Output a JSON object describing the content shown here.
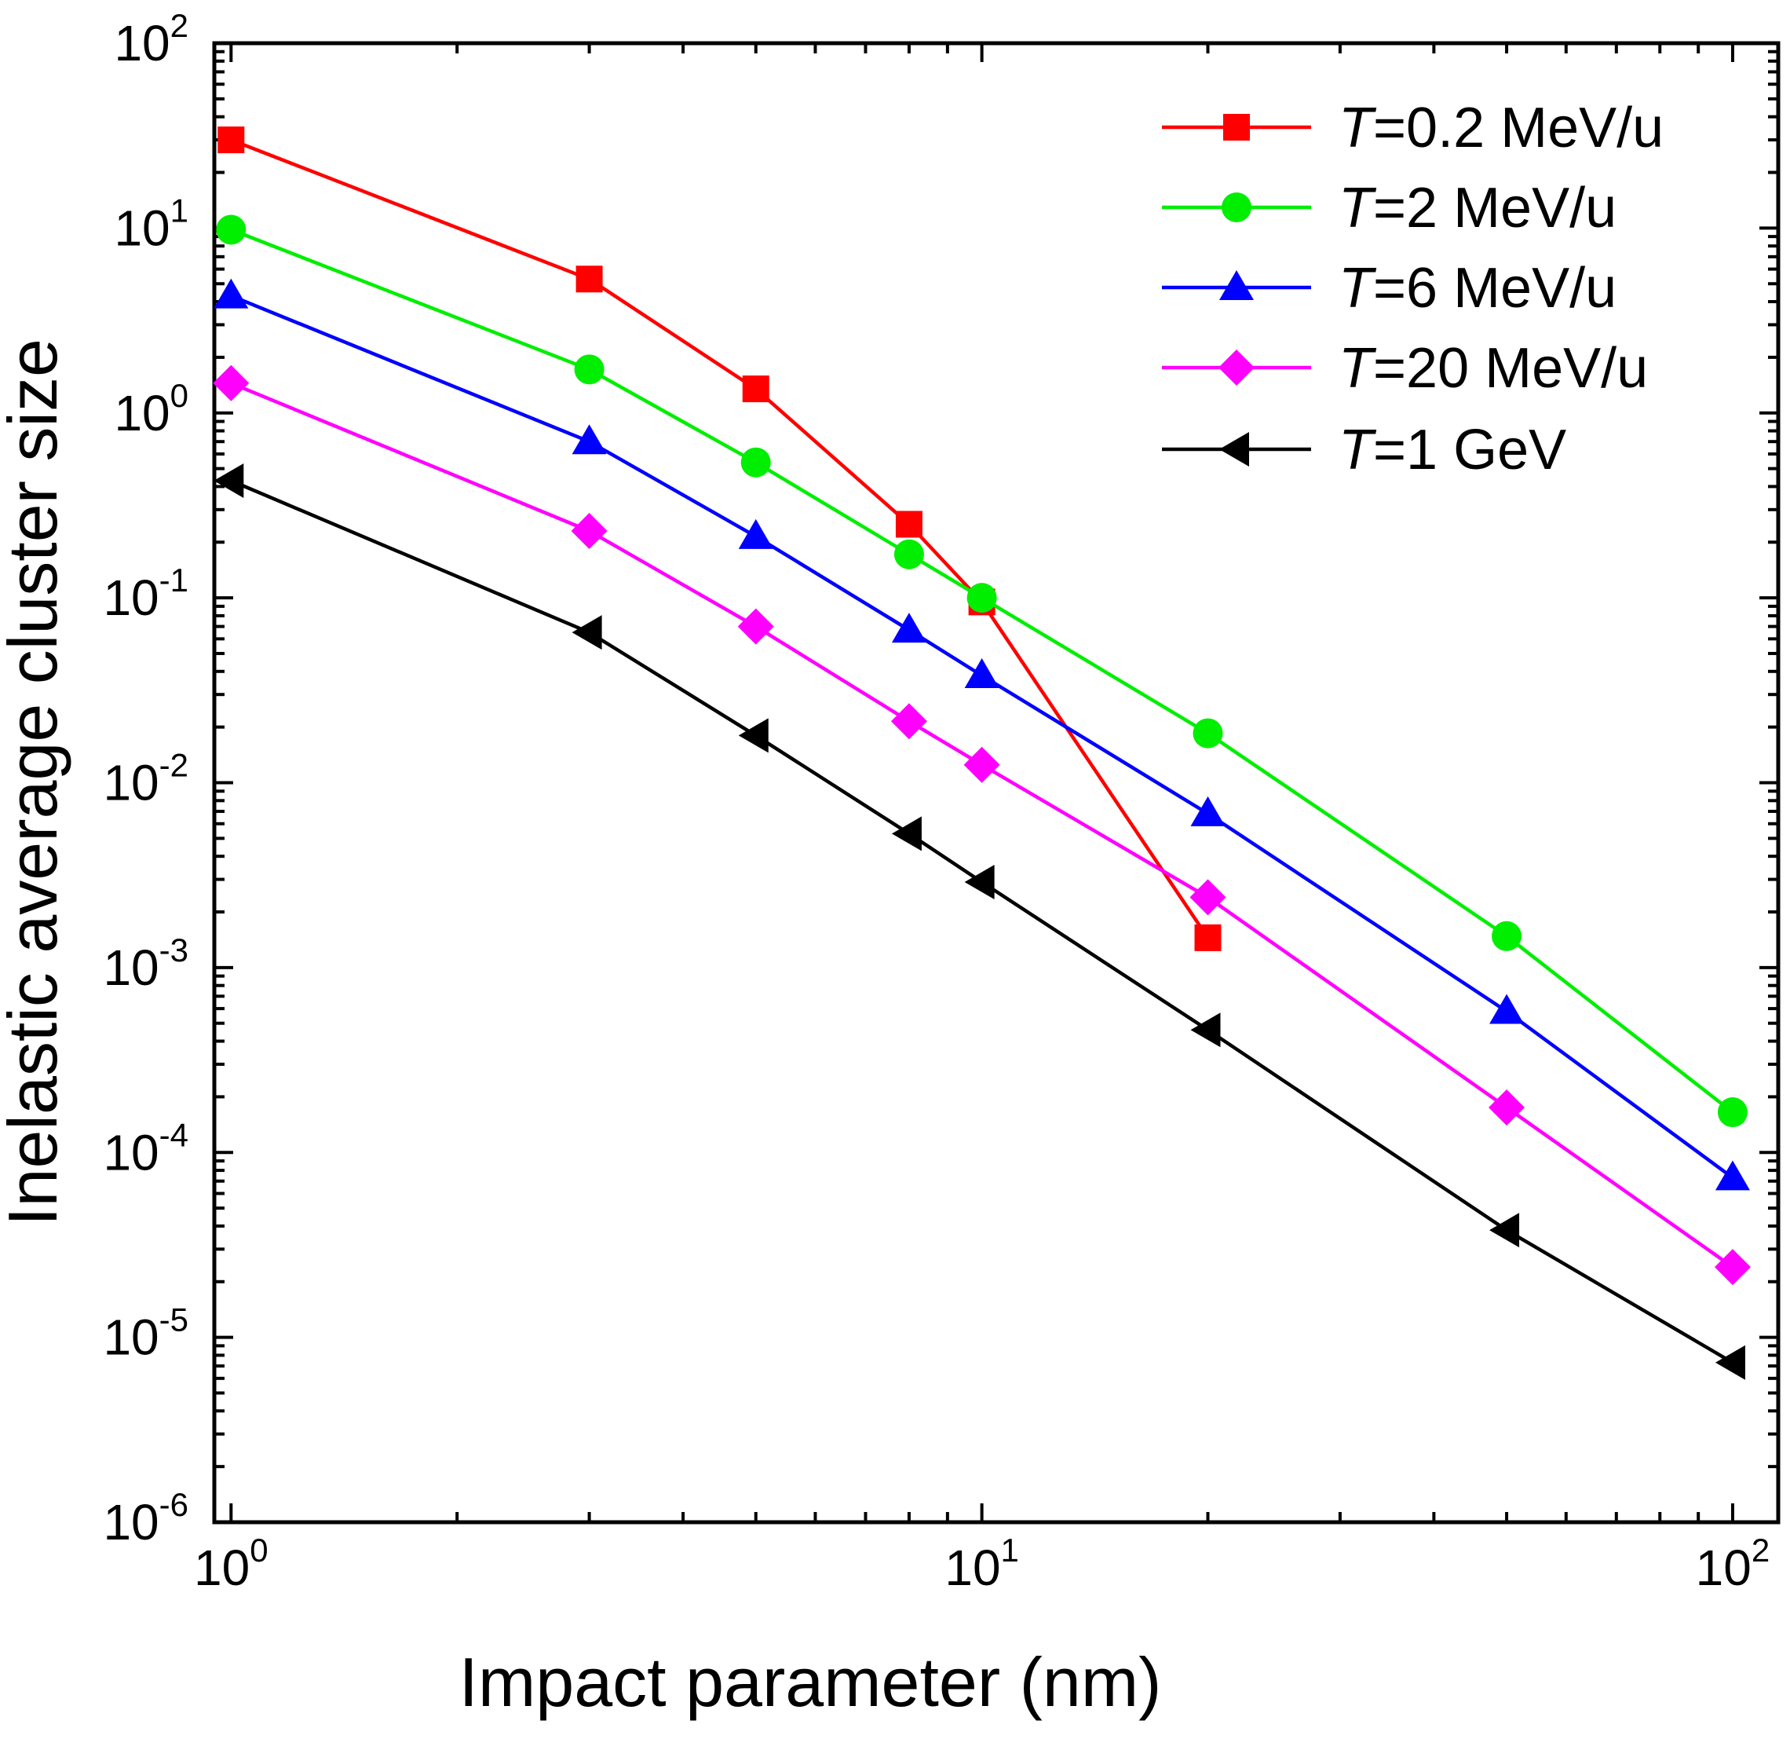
{
  "chart_data": {
    "type": "line",
    "title": "",
    "xlabel": "Impact parameter (nm)",
    "ylabel": "Inelastic average cluster size",
    "xscale": "log",
    "yscale": "log",
    "xlim": [
      0.95,
      115
    ],
    "ylim": [
      1e-06,
      100
    ],
    "grid": false,
    "legend_position": "top-right",
    "x_ticks": [
      {
        "value": 1,
        "base": "10",
        "exp": "0"
      },
      {
        "value": 10,
        "base": "10",
        "exp": "1"
      },
      {
        "value": 100,
        "base": "10",
        "exp": "2"
      }
    ],
    "y_ticks": [
      {
        "value": 1e-06,
        "base": "10",
        "exp": "-6"
      },
      {
        "value": 1e-05,
        "base": "10",
        "exp": "-5"
      },
      {
        "value": 0.0001,
        "base": "10",
        "exp": "-4"
      },
      {
        "value": 0.001,
        "base": "10",
        "exp": "-3"
      },
      {
        "value": 0.01,
        "base": "10",
        "exp": "-2"
      },
      {
        "value": 0.1,
        "base": "10",
        "exp": "-1"
      },
      {
        "value": 1,
        "base": "10",
        "exp": "0"
      },
      {
        "value": 10,
        "base": "10",
        "exp": "1"
      },
      {
        "value": 100,
        "base": "10",
        "exp": "2"
      }
    ],
    "series": [
      {
        "id": "t-0-2-mev",
        "name_italic": "T",
        "name_rest": "=0.2 MeV/u",
        "color": "#ff0000",
        "marker": "square",
        "x": [
          1,
          3,
          5,
          8,
          10,
          20
        ],
        "y": [
          30,
          5.3,
          1.35,
          0.25,
          0.095,
          0.00145
        ]
      },
      {
        "id": "t-2-mev",
        "name_italic": "T",
        "name_rest": "=2 MeV/u",
        "color": "#00ee00",
        "marker": "circle",
        "x": [
          1,
          3,
          5,
          8,
          10,
          20,
          50,
          100
        ],
        "y": [
          9.8,
          1.72,
          0.54,
          0.172,
          0.1,
          0.0185,
          0.00148,
          0.000165
        ]
      },
      {
        "id": "t-6-mev",
        "name_italic": "T",
        "name_rest": "=6 MeV/u",
        "color": "#0000ff",
        "marker": "triangle-up",
        "x": [
          1,
          3,
          5,
          8,
          10,
          20,
          50,
          100
        ],
        "y": [
          4.3,
          0.7,
          0.215,
          0.067,
          0.038,
          0.0068,
          0.00058,
          7.3e-05
        ]
      },
      {
        "id": "t-20-mev",
        "name_italic": "T",
        "name_rest": "=20 MeV/u",
        "color": "#ff00ff",
        "marker": "diamond",
        "x": [
          1,
          3,
          5,
          8,
          10,
          20,
          50,
          100
        ],
        "y": [
          1.45,
          0.23,
          0.07,
          0.0215,
          0.0125,
          0.0024,
          0.000175,
          2.4e-05
        ]
      },
      {
        "id": "t-1-gev",
        "name_italic": "T",
        "name_rest": "=1 GeV",
        "color": "#000000",
        "marker": "triangle-left",
        "x": [
          1,
          3,
          5,
          8,
          10,
          20,
          50,
          100
        ],
        "y": [
          0.43,
          0.065,
          0.018,
          0.0053,
          0.0029,
          0.00046,
          3.8e-05,
          7.3e-06
        ]
      }
    ]
  }
}
